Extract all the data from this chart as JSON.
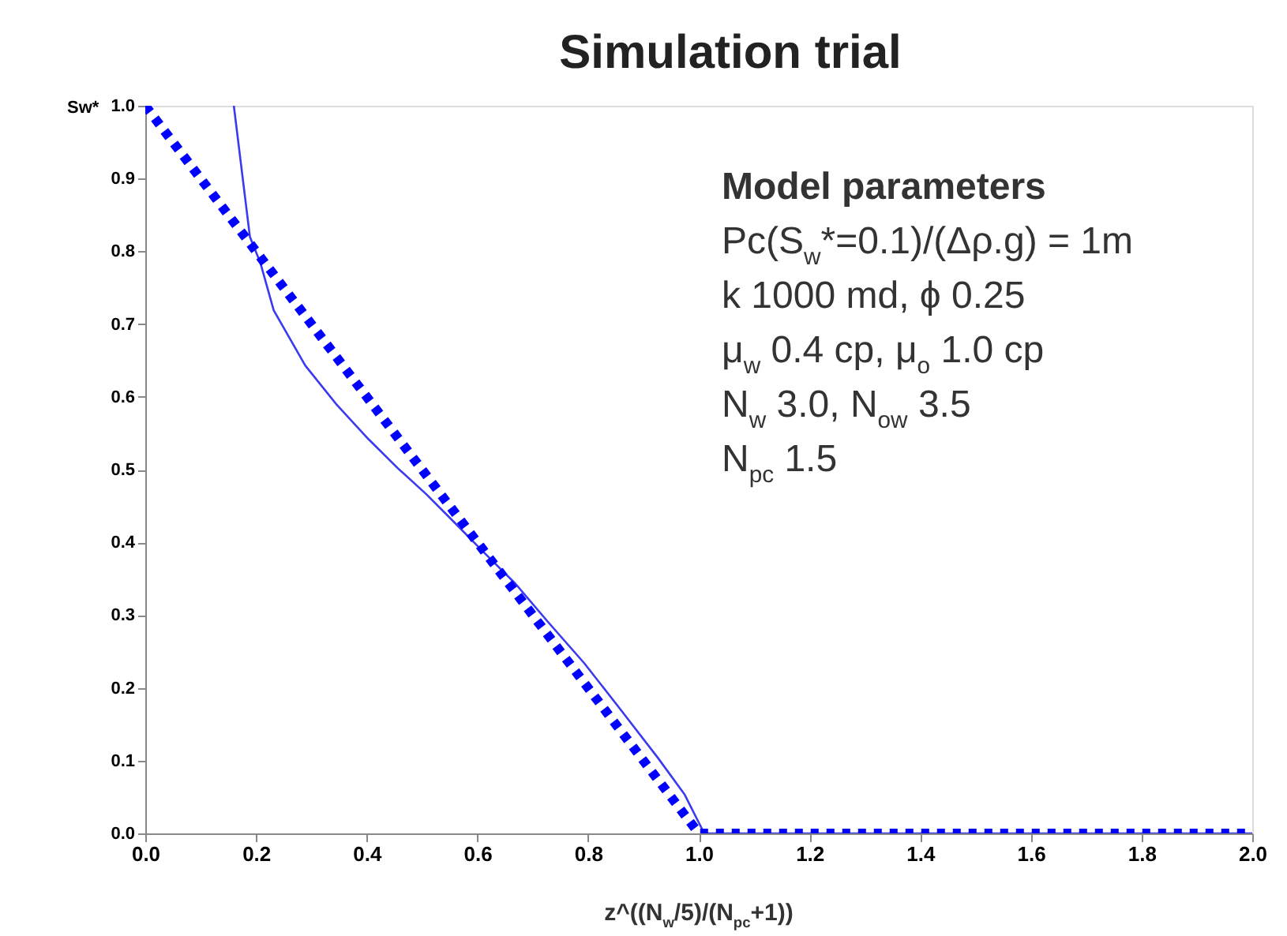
{
  "chart_data": {
    "type": "line",
    "title": "Simulation trial",
    "xlabel": "z^((N$_{w}$/5)/(N$_{pc}$+1))",
    "ylabel": "Sw*",
    "xlim": [
      0,
      2
    ],
    "ylim": [
      0,
      1
    ],
    "xticks": [
      {
        "value": 0,
        "label": "0.0"
      },
      {
        "value": 0.2,
        "label": "0.2"
      },
      {
        "value": 0.4,
        "label": "0.4"
      },
      {
        "value": 0.6,
        "label": "0.6"
      },
      {
        "value": 0.8,
        "label": "0.8"
      },
      {
        "value": 1,
        "label": "1.0"
      },
      {
        "value": 1.2,
        "label": "1.2"
      },
      {
        "value": 1.4,
        "label": "1.4"
      },
      {
        "value": 1.6,
        "label": "1.6"
      },
      {
        "value": 1.8,
        "label": "1.8"
      },
      {
        "value": 2,
        "label": "2.0"
      }
    ],
    "yticks": [
      {
        "value": 0,
        "label": "0.0"
      },
      {
        "value": 0.1,
        "label": "0.1"
      },
      {
        "value": 0.2,
        "label": "0.2"
      },
      {
        "value": 0.3,
        "label": "0.3"
      },
      {
        "value": 0.4,
        "label": "0.4"
      },
      {
        "value": 0.5,
        "label": "0.5"
      },
      {
        "value": 0.6,
        "label": "0.6"
      },
      {
        "value": 0.7,
        "label": "0.7"
      },
      {
        "value": 0.8,
        "label": "0.8"
      },
      {
        "value": 0.9,
        "label": "0.9"
      },
      {
        "value": 1,
        "label": "1.0"
      }
    ],
    "grid": false,
    "series": [
      {
        "color": "#3a3af0",
        "line_style": "solid",
        "x": [
          0.16,
          0.189,
          0.208,
          0.232,
          0.289,
          0.346,
          0.403,
          0.456,
          0.508,
          0.555,
          0.612,
          0.669,
          0.726,
          0.793,
          0.86,
          0.926,
          0.974,
          1.01,
          2.0
        ],
        "values": [
          1.0,
          0.82,
          0.784,
          0.719,
          0.643,
          0.589,
          0.542,
          0.502,
          0.466,
          0.43,
          0.386,
          0.343,
          0.292,
          0.234,
          0.169,
          0.104,
          0.054,
          0.0,
          0.0
        ]
      },
      {
        "color": "#0000ff",
        "line_style": "dotted",
        "x": [
          0,
          1.0,
          2.0
        ],
        "values": [
          1.0,
          0.0,
          0.0
        ]
      }
    ],
    "annotations": [
      "Model parameters",
      "Pc(S$_{w}$*=0.1)/(Δρ.g) = 1m",
      "k 1000 md, ϕ 0.25",
      "μ$_{w}$ 0.4 cp, μ$_{o}$ 1.0 cp",
      "N$_{w}$ 3.0, N$_{ow}$ 3.5",
      "N$_{pc}$ 1.5"
    ]
  }
}
